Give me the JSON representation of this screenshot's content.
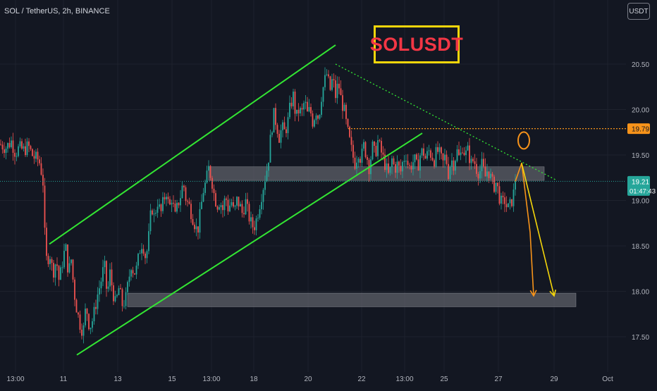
{
  "header": {
    "symbol_line": "SOL / TetherUS, 2h, BINANCE",
    "currency_button": "USDT"
  },
  "annotation": {
    "title": "SOLUSDT"
  },
  "colors": {
    "background": "#131722",
    "up_candle": "#26a69a",
    "down_candle": "#ef5350",
    "channel": "#33e633",
    "zone": "#5d6068",
    "resistance_dotted": "#f7931a",
    "projection_orange": "#f7931a",
    "projection_yellow": "#f5d60a",
    "last_price_line": "#26a69a",
    "axis_text": "#b2b5be"
  },
  "chart_data": {
    "type": "candlestick",
    "title": "SOLUSDT",
    "interval": "2h",
    "exchange": "BINANCE",
    "ylim": [
      17.2,
      21.05
    ],
    "y_ticks": [
      "17.50",
      "18.00",
      "18.50",
      "19.00",
      "19.50",
      "20.00",
      "20.50"
    ],
    "x_ticks": [
      "13:00",
      "11",
      "13",
      "15",
      "13:00",
      "18",
      "20",
      "22",
      "13:00",
      "25",
      "27",
      "29",
      "Oct"
    ],
    "close_path": [
      [
        0,
        19.62
      ],
      [
        8,
        19.58
      ],
      [
        16,
        19.65
      ],
      [
        22,
        19.52
      ],
      [
        27,
        19.58
      ],
      [
        34,
        19.55
      ],
      [
        40,
        19.6
      ],
      [
        47,
        19.48
      ],
      [
        54,
        19.45
      ],
      [
        57,
        19.4
      ],
      [
        60,
        19.25
      ],
      [
        62,
        19.15
      ],
      [
        64,
        18.45
      ],
      [
        67,
        18.3
      ],
      [
        70,
        18.45
      ],
      [
        75,
        18.2
      ],
      [
        80,
        18.35
      ],
      [
        84,
        18.1
      ],
      [
        88,
        18.3
      ],
      [
        93,
        18.5
      ],
      [
        97,
        18.2
      ],
      [
        101,
        18.35
      ],
      [
        105,
        18.0
      ],
      [
        109,
        17.8
      ],
      [
        113,
        17.65
      ],
      [
        118,
        17.55
      ],
      [
        122,
        17.85
      ],
      [
        127,
        17.6
      ],
      [
        132,
        17.7
      ],
      [
        138,
        17.95
      ],
      [
        143,
        18.1
      ],
      [
        148,
        18.3
      ],
      [
        152,
        17.95
      ],
      [
        156,
        18.2
      ],
      [
        160,
        18.0
      ],
      [
        164,
        17.85
      ],
      [
        169,
        18.05
      ],
      [
        173,
        17.85
      ],
      [
        178,
        17.9
      ],
      [
        182,
        18.1
      ],
      [
        186,
        18.3
      ],
      [
        190,
        18.2
      ],
      [
        194,
        18.25
      ],
      [
        198,
        18.45
      ],
      [
        202,
        18.55
      ],
      [
        207,
        18.35
      ],
      [
        211,
        18.6
      ],
      [
        215,
        18.95
      ],
      [
        219,
        18.8
      ],
      [
        223,
        19.0
      ],
      [
        228,
        18.85
      ],
      [
        232,
        19.0
      ],
      [
        236,
        19.1
      ],
      [
        240,
        18.9
      ],
      [
        244,
        19.05
      ],
      [
        248,
        18.8
      ],
      [
        252,
        18.95
      ],
      [
        256,
        19.05
      ],
      [
        260,
        19.2
      ],
      [
        264,
        19.0
      ],
      [
        268,
        18.95
      ],
      [
        272,
        18.85
      ],
      [
        276,
        18.75
      ],
      [
        280,
        18.65
      ],
      [
        284,
        18.85
      ],
      [
        288,
        19.1
      ],
      [
        292,
        19.2
      ],
      [
        296,
        19.35
      ],
      [
        300,
        19.25
      ],
      [
        304,
        19.05
      ],
      [
        308,
        18.95
      ],
      [
        312,
        19.0
      ],
      [
        316,
        18.9
      ],
      [
        320,
        19.05
      ],
      [
        324,
        18.9
      ],
      [
        328,
        19.0
      ],
      [
        332,
        18.85
      ],
      [
        336,
        19.0
      ],
      [
        340,
        18.95
      ],
      [
        344,
        18.85
      ],
      [
        348,
        19.0
      ],
      [
        352,
        18.85
      ],
      [
        356,
        18.75
      ],
      [
        360,
        18.7
      ],
      [
        364,
        18.8
      ],
      [
        368,
        18.95
      ],
      [
        372,
        19.1
      ],
      [
        376,
        19.25
      ],
      [
        380,
        19.4
      ],
      [
        384,
        19.7
      ],
      [
        388,
        19.95
      ],
      [
        392,
        19.85
      ],
      [
        396,
        19.7
      ],
      [
        400,
        19.8
      ],
      [
        404,
        19.75
      ],
      [
        408,
        19.85
      ],
      [
        412,
        20.05
      ],
      [
        416,
        20.15
      ],
      [
        420,
        19.9
      ],
      [
        424,
        20.0
      ],
      [
        428,
        19.95
      ],
      [
        432,
        20.1
      ],
      [
        436,
        19.95
      ],
      [
        440,
        20.0
      ],
      [
        444,
        19.85
      ],
      [
        448,
        20.0
      ],
      [
        452,
        19.9
      ],
      [
        456,
        20.15
      ],
      [
        460,
        20.3
      ],
      [
        464,
        20.4
      ],
      [
        468,
        20.2
      ],
      [
        472,
        20.35
      ],
      [
        476,
        20.15
      ],
      [
        480,
        20.3
      ],
      [
        484,
        20.1
      ],
      [
        488,
        20.0
      ],
      [
        492,
        19.8
      ],
      [
        496,
        19.65
      ],
      [
        500,
        19.5
      ],
      [
        504,
        19.4
      ],
      [
        508,
        19.55
      ],
      [
        512,
        19.45
      ],
      [
        516,
        19.6
      ],
      [
        520,
        19.5
      ],
      [
        524,
        19.35
      ],
      [
        528,
        19.6
      ],
      [
        532,
        19.5
      ],
      [
        536,
        19.65
      ],
      [
        540,
        19.55
      ],
      [
        544,
        19.45
      ],
      [
        548,
        19.35
      ],
      [
        552,
        19.25
      ],
      [
        556,
        19.45
      ],
      [
        560,
        19.35
      ],
      [
        564,
        19.4
      ],
      [
        568,
        19.3
      ],
      [
        572,
        19.45
      ],
      [
        576,
        19.5
      ],
      [
        580,
        19.35
      ],
      [
        584,
        19.4
      ],
      [
        588,
        19.45
      ],
      [
        592,
        19.35
      ],
      [
        596,
        19.5
      ],
      [
        600,
        19.55
      ],
      [
        604,
        19.45
      ],
      [
        608,
        19.55
      ],
      [
        612,
        19.5
      ],
      [
        616,
        19.45
      ],
      [
        620,
        19.55
      ],
      [
        624,
        19.5
      ],
      [
        628,
        19.4
      ],
      [
        632,
        19.5
      ],
      [
        636,
        19.3
      ],
      [
        640,
        19.45
      ],
      [
        644,
        19.4
      ],
      [
        648,
        19.55
      ],
      [
        652,
        19.45
      ],
      [
        656,
        19.6
      ],
      [
        660,
        19.5
      ],
      [
        664,
        19.55
      ],
      [
        668,
        19.4
      ],
      [
        672,
        19.45
      ],
      [
        676,
        19.35
      ],
      [
        680,
        19.3
      ],
      [
        684,
        19.4
      ],
      [
        688,
        19.25
      ],
      [
        692,
        19.35
      ],
      [
        696,
        19.25
      ],
      [
        700,
        19.15
      ],
      [
        704,
        19.2
      ],
      [
        708,
        19.05
      ],
      [
        712,
        18.95
      ],
      [
        716,
        19.0
      ],
      [
        720,
        18.9
      ],
      [
        724,
        18.95
      ],
      [
        728,
        19.05
      ],
      [
        731,
        19.21
      ]
    ],
    "candle_spacing_px": 2.5,
    "zones": [
      {
        "y_top": 19.37,
        "y_bottom": 19.22,
        "x_start": 296,
        "x_end": 772
      },
      {
        "y_top": 17.98,
        "y_bottom": 17.83,
        "x_start": 181,
        "x_end": 817
      }
    ],
    "channel_lines": [
      {
        "from": [
          70,
          18.52
        ],
        "to": [
          476,
          20.71
        ]
      },
      {
        "from": [
          109,
          17.3
        ],
        "to": [
          599,
          19.74
        ]
      }
    ],
    "trendline_dotted": {
      "from": [
        476,
        20.5
      ],
      "to": [
        790,
        19.22
      ]
    },
    "resistance_line": {
      "y": 19.79,
      "x_start": 494
    },
    "target_circle": {
      "x": 743,
      "y": 19.66
    },
    "projection_orange": {
      "points": [
        [
          731,
          19.21
        ],
        [
          740,
          19.41
        ],
        [
          752,
          18.65
        ],
        [
          757,
          17.95
        ]
      ]
    },
    "projection_yellow": {
      "points": [
        [
          740,
          19.41
        ],
        [
          786,
          17.95
        ]
      ]
    },
    "price_labels": [
      {
        "price": "19.79",
        "kind": "resistance"
      },
      {
        "price": "19.21",
        "countdown": "01:47:43",
        "kind": "last"
      }
    ],
    "last_price": 19.21,
    "countdown": "01:47:43"
  }
}
